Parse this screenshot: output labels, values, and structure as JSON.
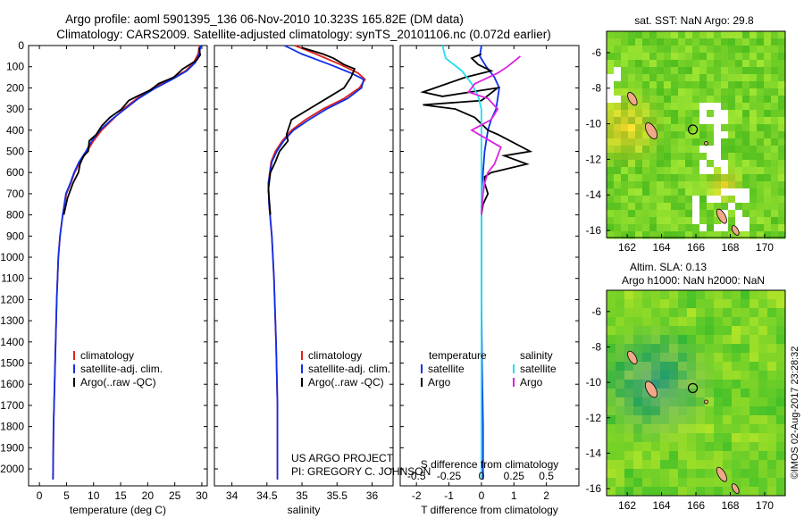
{
  "header": {
    "line1": "Argo profile: aoml 5901395_136 06-Nov-2010 10.323S 165.82E (DM data)",
    "line2": "Climatology: CARS2009. Satellite-adjusted climatology: synTS_20101106.nc (0.072d earlier)"
  },
  "colors": {
    "clim": "#e0201c",
    "sat": "#1030e8",
    "argo": "#000000",
    "sal_sat": "#20e0f0",
    "sal_argo": "#e020e0"
  },
  "chart_data": [
    {
      "type": "line",
      "title": "",
      "xlabel": "temperature (deg C)",
      "ylabel": "",
      "xlim": [
        -2,
        31
      ],
      "ylim": [
        2080,
        0
      ],
      "xticks": [
        0,
        5,
        10,
        15,
        20,
        25,
        30
      ],
      "yticks": [
        0,
        100,
        200,
        300,
        400,
        500,
        600,
        700,
        800,
        900,
        1000,
        1100,
        1200,
        1300,
        1400,
        1500,
        1600,
        1700,
        1800,
        1900,
        2000
      ],
      "legend": [
        "climatology",
        "satellite-adj. clim.",
        "Argo(..raw -QC)"
      ],
      "series": [
        {
          "name": "climatology",
          "color_key": "clim",
          "x": [
            29.6,
            29.3,
            28.5,
            27,
            24,
            21,
            18,
            15.5,
            13.5,
            11.5,
            10,
            8.8,
            7.5,
            6.5,
            5.8,
            5,
            4.3,
            3.8,
            3.5,
            3.2,
            3,
            2.8,
            2.6,
            2.5
          ],
          "y": [
            0,
            40,
            80,
            120,
            160,
            200,
            250,
            300,
            350,
            400,
            450,
            500,
            550,
            600,
            650,
            700,
            800,
            900,
            1000,
            1200,
            1400,
            1600,
            1800,
            2050
          ]
        },
        {
          "name": "satellite-adj. clim.",
          "color_key": "sat",
          "x": [
            29.8,
            29.5,
            28.8,
            27.2,
            24.5,
            21.5,
            18.3,
            15.8,
            13.3,
            11.2,
            9.7,
            8.6,
            7.3,
            6.4,
            5.7,
            4.9,
            4.3,
            3.8,
            3.5,
            3.2,
            3,
            2.8,
            2.6,
            2.5
          ],
          "y": [
            0,
            40,
            80,
            120,
            160,
            200,
            250,
            300,
            350,
            400,
            450,
            500,
            550,
            600,
            650,
            700,
            800,
            900,
            1000,
            1200,
            1400,
            1600,
            1800,
            2050
          ]
        },
        {
          "name": "Argo(..raw -QC)",
          "color_key": "argo",
          "x": [
            29.5,
            29.7,
            29,
            26.5,
            24.8,
            22,
            20.5,
            18,
            16.5,
            15.2,
            13,
            11.5,
            10.5,
            9.2,
            9,
            8.2,
            7.5,
            7.2,
            6.2,
            5.2,
            4.5
          ],
          "y": [
            10,
            45,
            70,
            110,
            150,
            180,
            210,
            240,
            260,
            300,
            340,
            380,
            420,
            450,
            500,
            520,
            560,
            600,
            650,
            720,
            800
          ]
        }
      ]
    },
    {
      "type": "line",
      "title": "",
      "xlabel": "salinity",
      "ylabel": "",
      "xlim": [
        33.75,
        36.3
      ],
      "ylim": [
        2080,
        0
      ],
      "xticks": [
        34,
        34.5,
        35,
        35.5,
        36
      ],
      "xticklabels": [
        "34",
        "34.5",
        "35",
        "35.5",
        "36"
      ],
      "legend": [
        "climatology",
        "satellite-adj. clim.",
        "Argo(..raw -QC)"
      ],
      "series": [
        {
          "name": "climatology",
          "color_key": "clim",
          "x": [
            34.9,
            35.2,
            35.55,
            35.8,
            35.9,
            35.82,
            35.6,
            35.3,
            35.05,
            34.85,
            34.72,
            34.62,
            34.56,
            34.52,
            34.53,
            34.57,
            34.6,
            34.63,
            34.65,
            34.65
          ],
          "y": [
            0,
            40,
            90,
            130,
            160,
            200,
            250,
            300,
            350,
            400,
            450,
            500,
            550,
            650,
            750,
            900,
            1100,
            1400,
            1700,
            2050
          ]
        },
        {
          "name": "satellite-adj. clim.",
          "color_key": "sat",
          "x": [
            34.75,
            35,
            35.4,
            35.7,
            35.88,
            35.85,
            35.65,
            35.35,
            35.1,
            34.88,
            34.74,
            34.64,
            34.57,
            34.52,
            34.53,
            34.57,
            34.6,
            34.63,
            34.65,
            34.65
          ],
          "y": [
            0,
            40,
            90,
            130,
            160,
            200,
            250,
            300,
            350,
            400,
            450,
            500,
            550,
            650,
            750,
            900,
            1100,
            1400,
            1700,
            2050
          ]
        },
        {
          "name": "Argo(..raw -QC)",
          "color_key": "argo",
          "x": [
            35,
            35.3,
            35.45,
            35.6,
            35.75,
            35.7,
            35.6,
            35.35,
            35.1,
            34.85,
            34.78,
            34.8,
            34.68,
            34.62,
            34.55,
            34.52,
            34.55
          ],
          "y": [
            10,
            40,
            60,
            90,
            110,
            150,
            200,
            250,
            300,
            350,
            420,
            450,
            500,
            550,
            600,
            680,
            800
          ]
        }
      ]
    },
    {
      "type": "line",
      "title": "",
      "xlabel": "T difference from climatology",
      "xlabel2": "S difference from climatology",
      "ylabel": "",
      "xlim": [
        -2.5,
        3
      ],
      "ylim": [
        2080,
        0
      ],
      "xticks": [
        -2,
        -1,
        0,
        1,
        2
      ],
      "xticks2": [
        -0.5,
        -0.25,
        0,
        0.25,
        0.5
      ],
      "xticklabels2": [
        "-0.5",
        "-0.25",
        "0",
        "0.25",
        "0.5"
      ],
      "legend_headers": [
        "temperature",
        "salinity"
      ],
      "legend": [
        "satellite",
        "Argo",
        "satellite",
        "Argo"
      ],
      "series": [
        {
          "name": "T satellite",
          "color_key": "sat",
          "x": [
            0,
            -0.05,
            0.15,
            0.4,
            0.55,
            0.5,
            0.45,
            0.3,
            0.2,
            0.1,
            0.05,
            0,
            0,
            0,
            0.02,
            0.05,
            0.05
          ],
          "y": [
            0,
            50,
            100,
            150,
            200,
            250,
            300,
            350,
            400,
            500,
            600,
            700,
            900,
            1200,
            1500,
            1800,
            2050
          ]
        },
        {
          "name": "T Argo",
          "color_key": "argo",
          "x": [
            0,
            -0.3,
            -0.1,
            0.3,
            -0.5,
            -1.8,
            -1.2,
            0.5,
            0,
            -1.8,
            -0.8,
            -0.2,
            0.2,
            0.5,
            1.5,
            0.7,
            1.4,
            0.3,
            0.1,
            0.1,
            0.2,
            0.05,
            0
          ],
          "y": [
            40,
            60,
            90,
            120,
            150,
            220,
            240,
            200,
            260,
            280,
            300,
            340,
            400,
            420,
            500,
            520,
            560,
            600,
            620,
            650,
            700,
            750,
            800
          ]
        },
        {
          "name": "S satellite",
          "color_key": "sal_sat",
          "x": [
            -1.2,
            -1.1,
            -0.6,
            -0.3,
            -0.1,
            0,
            0,
            0,
            0,
            0
          ],
          "y": [
            0,
            60,
            120,
            180,
            240,
            300,
            450,
            900,
            1500,
            2050
          ]
        },
        {
          "name": "S Argo",
          "color_key": "sal_argo",
          "x": [
            1.2,
            0.8,
            0.5,
            -0.2,
            -0.4,
            0.2,
            0.5,
            0.3,
            -0.3,
            0.6,
            0.4,
            0.2,
            0.1,
            0.05,
            0
          ],
          "y": [
            50,
            100,
            130,
            180,
            220,
            250,
            300,
            350,
            400,
            480,
            560,
            600,
            650,
            700,
            800
          ]
        }
      ]
    },
    {
      "type": "heatmap",
      "title": "sat. SST: NaN Argo: 29.8",
      "xticks": [
        162,
        164,
        166,
        168,
        170
      ],
      "yticks": [
        -6,
        -8,
        -10,
        -12,
        -14,
        -16
      ],
      "xlim": [
        160.8,
        171.2
      ],
      "ylim": [
        -16.4,
        -4.8
      ]
    },
    {
      "type": "heatmap",
      "title": "Altim. SLA: 0.13",
      "subtitle": "Argo h1000: NaN h2000: NaN",
      "xticks": [
        162,
        164,
        166,
        168,
        170
      ],
      "yticks": [
        -6,
        -8,
        -10,
        -12,
        -14,
        -16
      ],
      "xlim": [
        160.8,
        171.2
      ],
      "ylim": [
        -16.4,
        -4.8
      ]
    }
  ],
  "annotations": {
    "project": "US ARGO PROJECT",
    "pi": "PI: GREGORY C. JOHNSON",
    "credit": "©IMOS 02-Aug-2017 23:28:32"
  }
}
